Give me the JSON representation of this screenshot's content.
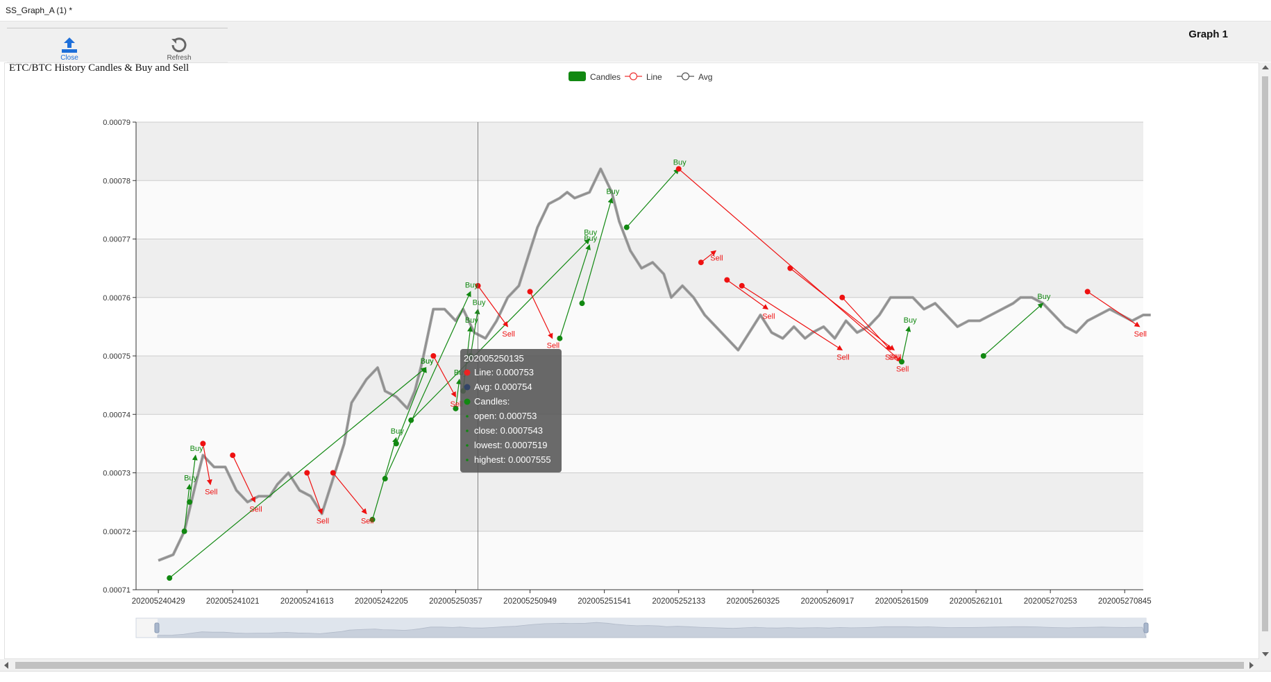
{
  "window": {
    "title": "SS_Graph_A (1) *"
  },
  "toolbar": {
    "close_label": "Close",
    "refresh_label": "Refresh",
    "graph_label": "Graph 1"
  },
  "colors": {
    "buy": "#118811",
    "sell": "#ee1111",
    "candle": "#9e9e9e",
    "avg": "#555555",
    "accent": "#1e6fd9"
  },
  "legend": [
    {
      "label": "Candles",
      "icon": "filled-rect-icon",
      "color": "#118811"
    },
    {
      "label": "Line",
      "icon": "hollow-circle-icon",
      "color": "#ee3333"
    },
    {
      "label": "Avg",
      "icon": "hollow-circle-icon",
      "color": "#555555"
    }
  ],
  "tooltip": {
    "title": "202005250135",
    "rows": [
      {
        "marker": "dot",
        "color": "#ee2222",
        "text": "Line: 0.000753"
      },
      {
        "marker": "dot",
        "color": "#334466",
        "text": "Avg: 0.000754"
      },
      {
        "marker": "dot",
        "color": "#118811",
        "text": "Candles:"
      },
      {
        "marker": "small",
        "color": "#118811",
        "text": "open: 0.000753"
      },
      {
        "marker": "small",
        "color": "#118811",
        "text": "close: 0.0007543"
      },
      {
        "marker": "small",
        "color": "#118811",
        "text": "lowest: 0.0007519"
      },
      {
        "marker": "small",
        "color": "#118811",
        "text": "highest: 0.0007555"
      }
    ]
  },
  "chart_data": {
    "type": "line",
    "title": "ETC/BTC History Candles & Buy and Sell",
    "ylim": [
      0.00071,
      0.00079
    ],
    "yticks": [
      "0.00071",
      "0.00072",
      "0.00073",
      "0.00074",
      "0.00075",
      "0.00076",
      "0.00077",
      "0.00078",
      "0.00079"
    ],
    "xticks": [
      "202005240429",
      "202005241021",
      "202005241613",
      "202005242205",
      "202005250357",
      "202005250949",
      "202005251541",
      "202005252133",
      "202005260325",
      "202005260917",
      "202005261509",
      "202005262101",
      "202005270253",
      "202005270845"
    ],
    "legend_position": "top-center",
    "grid": true,
    "series": [
      {
        "name": "Line",
        "x": [
          0,
          0.2,
          0.35,
          0.5,
          0.6,
          0.75,
          0.9,
          1.05,
          1.2,
          1.35,
          1.5,
          1.6,
          1.75,
          1.9,
          2.05,
          2.2,
          2.35,
          2.5,
          2.6,
          2.8,
          2.95,
          3.05,
          3.2,
          3.35,
          3.45,
          3.55,
          3.7,
          3.85,
          4.0,
          4.1,
          4.25,
          4.4,
          4.55,
          4.7,
          4.85,
          5.0,
          5.1,
          5.25,
          5.4,
          5.5,
          5.6,
          5.8,
          5.95,
          6.1,
          6.2,
          6.35,
          6.5,
          6.65,
          6.8,
          6.9,
          7.05,
          7.2,
          7.35,
          7.5,
          7.65,
          7.8,
          7.95,
          8.1,
          8.25,
          8.4,
          8.55,
          8.7,
          8.8,
          8.95,
          9.1,
          9.25,
          9.4,
          9.55,
          9.7,
          9.85,
          10.0,
          10.15,
          10.3,
          10.45,
          10.6,
          10.75,
          10.9,
          11.05,
          11.2,
          11.35,
          11.5,
          11.6,
          11.75,
          11.9,
          12.05,
          12.2,
          12.35,
          12.5,
          12.65,
          12.8,
          12.95,
          13.1,
          13.25,
          13.35
        ],
        "values": [
          0.000715,
          0.000716,
          0.00072,
          0.000728,
          0.000733,
          0.000731,
          0.000731,
          0.000727,
          0.000725,
          0.000726,
          0.000726,
          0.000728,
          0.00073,
          0.000727,
          0.000726,
          0.000723,
          0.000729,
          0.000735,
          0.000742,
          0.000746,
          0.000748,
          0.000744,
          0.000743,
          0.000741,
          0.000744,
          0.000749,
          0.000758,
          0.000758,
          0.000756,
          0.000758,
          0.000754,
          0.000753,
          0.000756,
          0.00076,
          0.000762,
          0.000768,
          0.000772,
          0.000776,
          0.000777,
          0.000778,
          0.000777,
          0.000778,
          0.000782,
          0.000778,
          0.000773,
          0.000768,
          0.000765,
          0.000766,
          0.000764,
          0.00076,
          0.000762,
          0.00076,
          0.000757,
          0.000755,
          0.000753,
          0.000751,
          0.000754,
          0.000757,
          0.000754,
          0.000753,
          0.000755,
          0.000753,
          0.000754,
          0.000755,
          0.000753,
          0.000756,
          0.000754,
          0.000755,
          0.000757,
          0.00076,
          0.00076,
          0.00076,
          0.000758,
          0.000759,
          0.000757,
          0.000755,
          0.000756,
          0.000756,
          0.000757,
          0.000758,
          0.000759,
          0.00076,
          0.00076,
          0.000759,
          0.000757,
          0.000755,
          0.000754,
          0.000756,
          0.000757,
          0.000758,
          0.000757,
          0.000756,
          0.000757,
          0.000757
        ]
      }
    ],
    "buy_points": [
      {
        "x": 0.15,
        "y": 0.000712
      },
      {
        "x": 0.35,
        "y": 0.00072
      },
      {
        "x": 0.42,
        "y": 0.000725
      },
      {
        "x": 2.88,
        "y": 0.000722
      },
      {
        "x": 3.05,
        "y": 0.000729
      },
      {
        "x": 3.2,
        "y": 0.000735
      },
      {
        "x": 3.4,
        "y": 0.000739
      },
      {
        "x": 4.0,
        "y": 0.000741
      },
      {
        "x": 4.1,
        "y": 0.000744
      },
      {
        "x": 4.2,
        "y": 0.00075
      },
      {
        "x": 5.4,
        "y": 0.000753
      },
      {
        "x": 5.7,
        "y": 0.000759
      },
      {
        "x": 6.3,
        "y": 0.000772
      },
      {
        "x": 10.0,
        "y": 0.000749
      },
      {
        "x": 11.1,
        "y": 0.00075
      }
    ],
    "sell_points": [
      {
        "x": 0.6,
        "y": 0.000735
      },
      {
        "x": 1.0,
        "y": 0.000733
      },
      {
        "x": 2.0,
        "y": 0.00073
      },
      {
        "x": 2.35,
        "y": 0.00073
      },
      {
        "x": 3.7,
        "y": 0.00075
      },
      {
        "x": 4.3,
        "y": 0.000762
      },
      {
        "x": 5.0,
        "y": 0.000761
      },
      {
        "x": 7.0,
        "y": 0.000782
      },
      {
        "x": 7.3,
        "y": 0.000766
      },
      {
        "x": 7.65,
        "y": 0.000763
      },
      {
        "x": 7.85,
        "y": 0.000762
      },
      {
        "x": 8.5,
        "y": 0.000765
      },
      {
        "x": 9.2,
        "y": 0.00076
      },
      {
        "x": 12.5,
        "y": 0.000761
      }
    ],
    "trade_arrows": [
      {
        "type": "buy",
        "x1": 0.15,
        "y1": 0.000712,
        "x2": 3.6,
        "y2": 0.000748
      },
      {
        "type": "buy",
        "x1": 0.35,
        "y1": 0.00072,
        "x2": 0.42,
        "y2": 0.000728
      },
      {
        "type": "buy",
        "x1": 0.42,
        "y1": 0.000725,
        "x2": 0.5,
        "y2": 0.000733
      },
      {
        "type": "buy",
        "x1": 2.88,
        "y1": 0.000722,
        "x2": 3.2,
        "y2": 0.000736
      },
      {
        "type": "buy",
        "x1": 3.05,
        "y1": 0.000729,
        "x2": 4.2,
        "y2": 0.000761
      },
      {
        "type": "buy",
        "x1": 3.2,
        "y1": 0.000735,
        "x2": 3.6,
        "y2": 0.000748
      },
      {
        "type": "buy",
        "x1": 3.4,
        "y1": 0.000739,
        "x2": 5.8,
        "y2": 0.00077
      },
      {
        "type": "buy",
        "x1": 4.0,
        "y1": 0.000741,
        "x2": 4.05,
        "y2": 0.000746
      },
      {
        "type": "buy",
        "x1": 4.1,
        "y1": 0.000744,
        "x2": 4.2,
        "y2": 0.000755
      },
      {
        "type": "buy",
        "x1": 4.2,
        "y1": 0.00075,
        "x2": 4.3,
        "y2": 0.000758
      },
      {
        "type": "buy",
        "x1": 5.4,
        "y1": 0.000753,
        "x2": 5.8,
        "y2": 0.000769
      },
      {
        "type": "buy",
        "x1": 5.7,
        "y1": 0.000759,
        "x2": 6.1,
        "y2": 0.000777
      },
      {
        "type": "buy",
        "x1": 6.3,
        "y1": 0.000772,
        "x2": 7.0,
        "y2": 0.000782
      },
      {
        "type": "buy",
        "x1": 10.0,
        "y1": 0.000749,
        "x2": 10.1,
        "y2": 0.000755
      },
      {
        "type": "buy",
        "x1": 11.1,
        "y1": 0.00075,
        "x2": 11.9,
        "y2": 0.000759
      },
      {
        "type": "sell",
        "x1": 0.6,
        "y1": 0.000735,
        "x2": 0.7,
        "y2": 0.000728
      },
      {
        "type": "sell",
        "x1": 1.0,
        "y1": 0.000733,
        "x2": 1.3,
        "y2": 0.000725
      },
      {
        "type": "sell",
        "x1": 2.0,
        "y1": 0.00073,
        "x2": 2.2,
        "y2": 0.000723
      },
      {
        "type": "sell",
        "x1": 2.35,
        "y1": 0.00073,
        "x2": 2.8,
        "y2": 0.000723
      },
      {
        "type": "sell",
        "x1": 3.7,
        "y1": 0.00075,
        "x2": 4.0,
        "y2": 0.000743
      },
      {
        "type": "sell",
        "x1": 4.3,
        "y1": 0.000762,
        "x2": 4.7,
        "y2": 0.000755
      },
      {
        "type": "sell",
        "x1": 5.0,
        "y1": 0.000761,
        "x2": 5.3,
        "y2": 0.000753
      },
      {
        "type": "sell",
        "x1": 7.0,
        "y1": 0.000782,
        "x2": 10.0,
        "y2": 0.000749
      },
      {
        "type": "sell",
        "x1": 7.3,
        "y1": 0.000766,
        "x2": 7.5,
        "y2": 0.000768
      },
      {
        "type": "sell",
        "x1": 7.65,
        "y1": 0.000763,
        "x2": 8.2,
        "y2": 0.000758
      },
      {
        "type": "sell",
        "x1": 7.85,
        "y1": 0.000762,
        "x2": 9.2,
        "y2": 0.000751
      },
      {
        "type": "sell",
        "x1": 8.5,
        "y1": 0.000765,
        "x2": 9.9,
        "y2": 0.000751
      },
      {
        "type": "sell",
        "x1": 9.2,
        "y1": 0.00076,
        "x2": 9.85,
        "y2": 0.000751
      },
      {
        "type": "sell",
        "x1": 12.5,
        "y1": 0.000761,
        "x2": 13.2,
        "y2": 0.000755
      }
    ],
    "buy_label": "Buy",
    "sell_label": "Sell",
    "crosshair_x": 4.3
  }
}
